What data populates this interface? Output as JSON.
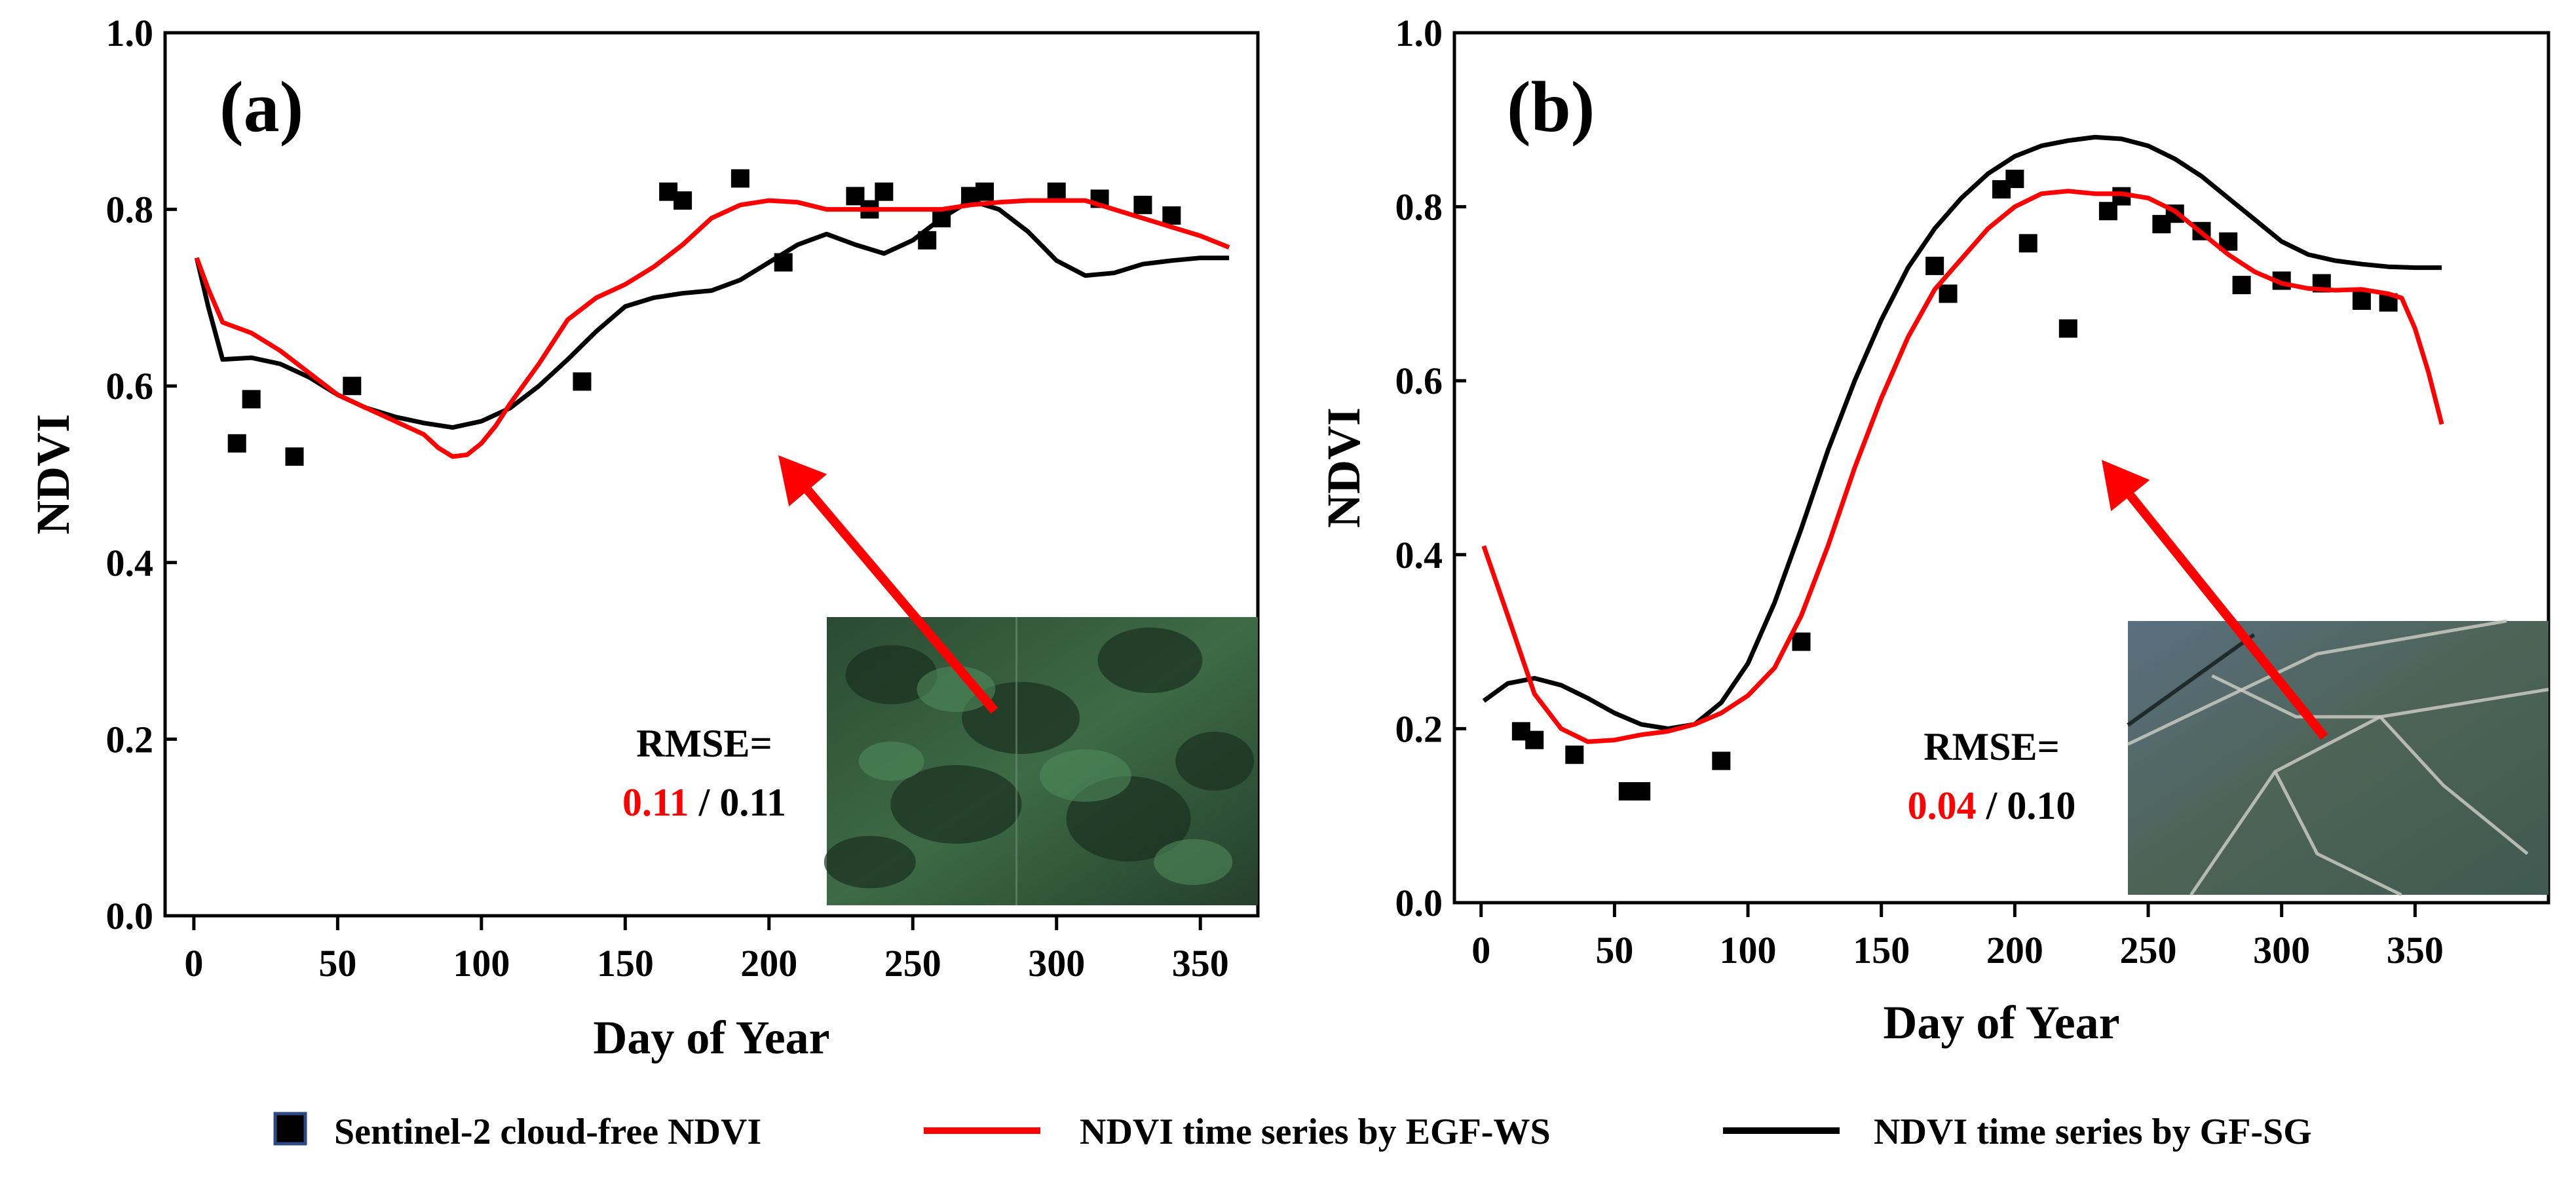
{
  "chart_data": [
    {
      "type": "line",
      "panel": "(a)",
      "xlabel": "Day of Year",
      "ylabel": "NDVI",
      "xlim": [
        -10,
        370
      ],
      "ylim": [
        0.0,
        1.0
      ],
      "xticks": [
        0,
        50,
        100,
        150,
        200,
        250,
        300,
        350
      ],
      "xtick_labels": [
        "0",
        "50",
        "100",
        "150",
        "200",
        "250",
        "300",
        "350"
      ],
      "yticks": [
        0.0,
        0.2,
        0.4,
        0.6,
        0.8,
        1.0
      ],
      "ytick_labels": [
        "0.0",
        "0.2",
        "0.4",
        "0.6",
        "0.8",
        "1.0"
      ],
      "rmse_label": "RMSE=",
      "rmse_red": "0.11",
      "rmse_sep": " / ",
      "rmse_black": "0.11",
      "inset_image": "forest-satellite-inset",
      "scatter": [
        [
          15,
          0.535
        ],
        [
          20,
          0.585
        ],
        [
          35,
          0.52
        ],
        [
          55,
          0.6
        ],
        [
          135,
          0.605
        ],
        [
          165,
          0.82
        ],
        [
          170,
          0.81
        ],
        [
          190,
          0.835
        ],
        [
          205,
          0.74
        ],
        [
          230,
          0.815
        ],
        [
          235,
          0.8
        ],
        [
          240,
          0.82
        ],
        [
          255,
          0.765
        ],
        [
          260,
          0.79
        ],
        [
          270,
          0.815
        ],
        [
          275,
          0.82
        ],
        [
          300,
          0.82
        ],
        [
          315,
          0.812
        ],
        [
          330,
          0.805
        ],
        [
          340,
          0.793
        ]
      ],
      "series": [
        {
          "name": "NDVI time series by EGF-WS",
          "color": "#ff0000",
          "x": [
            1,
            5,
            10,
            20,
            30,
            40,
            50,
            60,
            70,
            80,
            85,
            90,
            95,
            100,
            105,
            110,
            120,
            130,
            140,
            150,
            160,
            170,
            180,
            190,
            200,
            210,
            220,
            230,
            240,
            250,
            260,
            270,
            280,
            290,
            300,
            310,
            320,
            330,
            340,
            350,
            360
          ],
          "y": [
            0.745,
            0.71,
            0.672,
            0.66,
            0.64,
            0.615,
            0.59,
            0.575,
            0.56,
            0.545,
            0.53,
            0.52,
            0.522,
            0.535,
            0.555,
            0.58,
            0.625,
            0.675,
            0.7,
            0.715,
            0.735,
            0.76,
            0.79,
            0.805,
            0.81,
            0.808,
            0.8,
            0.8,
            0.8,
            0.8,
            0.8,
            0.805,
            0.808,
            0.81,
            0.81,
            0.81,
            0.8,
            0.79,
            0.78,
            0.77,
            0.757
          ]
        },
        {
          "name": "NDVI time series by GF-SG",
          "color": "#000000",
          "x": [
            1,
            5,
            10,
            20,
            30,
            40,
            50,
            60,
            70,
            80,
            90,
            100,
            110,
            120,
            130,
            140,
            150,
            160,
            170,
            180,
            190,
            200,
            210,
            220,
            230,
            240,
            250,
            260,
            270,
            280,
            290,
            300,
            310,
            320,
            330,
            340,
            350,
            360
          ],
          "y": [
            0.745,
            0.69,
            0.63,
            0.632,
            0.625,
            0.61,
            0.59,
            0.575,
            0.565,
            0.558,
            0.553,
            0.56,
            0.575,
            0.6,
            0.63,
            0.662,
            0.69,
            0.7,
            0.705,
            0.708,
            0.72,
            0.74,
            0.76,
            0.772,
            0.76,
            0.75,
            0.765,
            0.79,
            0.81,
            0.8,
            0.775,
            0.742,
            0.725,
            0.728,
            0.738,
            0.742,
            0.745,
            0.745
          ]
        }
      ]
    },
    {
      "type": "line",
      "panel": "(b)",
      "xlabel": "Day of Year",
      "ylabel": "NDVI",
      "xlim": [
        -10,
        400
      ],
      "ylim": [
        0.0,
        1.0
      ],
      "xticks": [
        0,
        50,
        100,
        150,
        200,
        250,
        300,
        350
      ],
      "xtick_labels": [
        "0",
        "50",
        "100",
        "150",
        "200",
        "250",
        "300",
        "350"
      ],
      "yticks": [
        0.0,
        0.2,
        0.4,
        0.6,
        0.8,
        1.0
      ],
      "ytick_labels": [
        "0.0",
        "0.2",
        "0.4",
        "0.6",
        "0.8",
        "1.0"
      ],
      "rmse_label": "RMSE=",
      "rmse_red": "0.04",
      "rmse_sep": " / ",
      "rmse_black": "0.10",
      "inset_image": "cropland-satellite-inset",
      "scatter": [
        [
          15,
          0.197
        ],
        [
          20,
          0.187
        ],
        [
          35,
          0.17
        ],
        [
          55,
          0.128
        ],
        [
          60,
          0.128
        ],
        [
          90,
          0.163
        ],
        [
          120,
          0.3
        ],
        [
          170,
          0.732
        ],
        [
          175,
          0.7
        ],
        [
          195,
          0.82
        ],
        [
          200,
          0.832
        ],
        [
          205,
          0.758
        ],
        [
          220,
          0.66
        ],
        [
          235,
          0.795
        ],
        [
          240,
          0.812
        ],
        [
          255,
          0.78
        ],
        [
          260,
          0.792
        ],
        [
          270,
          0.772
        ],
        [
          280,
          0.76
        ],
        [
          285,
          0.71
        ],
        [
          300,
          0.715
        ],
        [
          315,
          0.712
        ],
        [
          330,
          0.692
        ],
        [
          340,
          0.69
        ]
      ],
      "series": [
        {
          "name": "NDVI time series by EGF-WS",
          "color": "#ff0000",
          "x": [
            1,
            10,
            20,
            30,
            40,
            50,
            60,
            70,
            80,
            90,
            100,
            110,
            120,
            130,
            140,
            150,
            160,
            170,
            180,
            190,
            200,
            210,
            220,
            230,
            240,
            250,
            260,
            270,
            280,
            290,
            300,
            310,
            320,
            330,
            340,
            345,
            350,
            355,
            360
          ],
          "y": [
            0.41,
            0.33,
            0.24,
            0.2,
            0.185,
            0.187,
            0.193,
            0.197,
            0.205,
            0.218,
            0.238,
            0.27,
            0.33,
            0.41,
            0.5,
            0.58,
            0.65,
            0.705,
            0.74,
            0.775,
            0.8,
            0.815,
            0.818,
            0.815,
            0.815,
            0.81,
            0.795,
            0.77,
            0.745,
            0.725,
            0.712,
            0.706,
            0.704,
            0.705,
            0.7,
            0.695,
            0.66,
            0.61,
            0.55
          ]
        },
        {
          "name": "NDVI time series by GF-SG",
          "color": "#000000",
          "x": [
            1,
            10,
            20,
            30,
            40,
            50,
            60,
            70,
            80,
            90,
            100,
            110,
            120,
            130,
            140,
            150,
            160,
            170,
            180,
            190,
            200,
            210,
            220,
            230,
            240,
            250,
            260,
            270,
            280,
            290,
            300,
            310,
            320,
            330,
            340,
            350,
            360
          ],
          "y": [
            0.232,
            0.252,
            0.258,
            0.25,
            0.235,
            0.218,
            0.205,
            0.2,
            0.205,
            0.23,
            0.275,
            0.345,
            0.43,
            0.52,
            0.6,
            0.67,
            0.73,
            0.775,
            0.81,
            0.838,
            0.858,
            0.87,
            0.876,
            0.88,
            0.878,
            0.87,
            0.855,
            0.835,
            0.81,
            0.785,
            0.76,
            0.745,
            0.738,
            0.734,
            0.731,
            0.73,
            0.73
          ]
        }
      ]
    }
  ],
  "legend": {
    "items": [
      {
        "label": "Sentinel-2 cloud-free NDVI",
        "kind": "square-marker",
        "color": "#000000",
        "border": "#2e4a86"
      },
      {
        "label": "NDVI time series by EGF-WS",
        "kind": "line",
        "color": "#ff0000"
      },
      {
        "label": "NDVI time series by GF-SG",
        "kind": "line",
        "color": "#000000"
      }
    ]
  }
}
